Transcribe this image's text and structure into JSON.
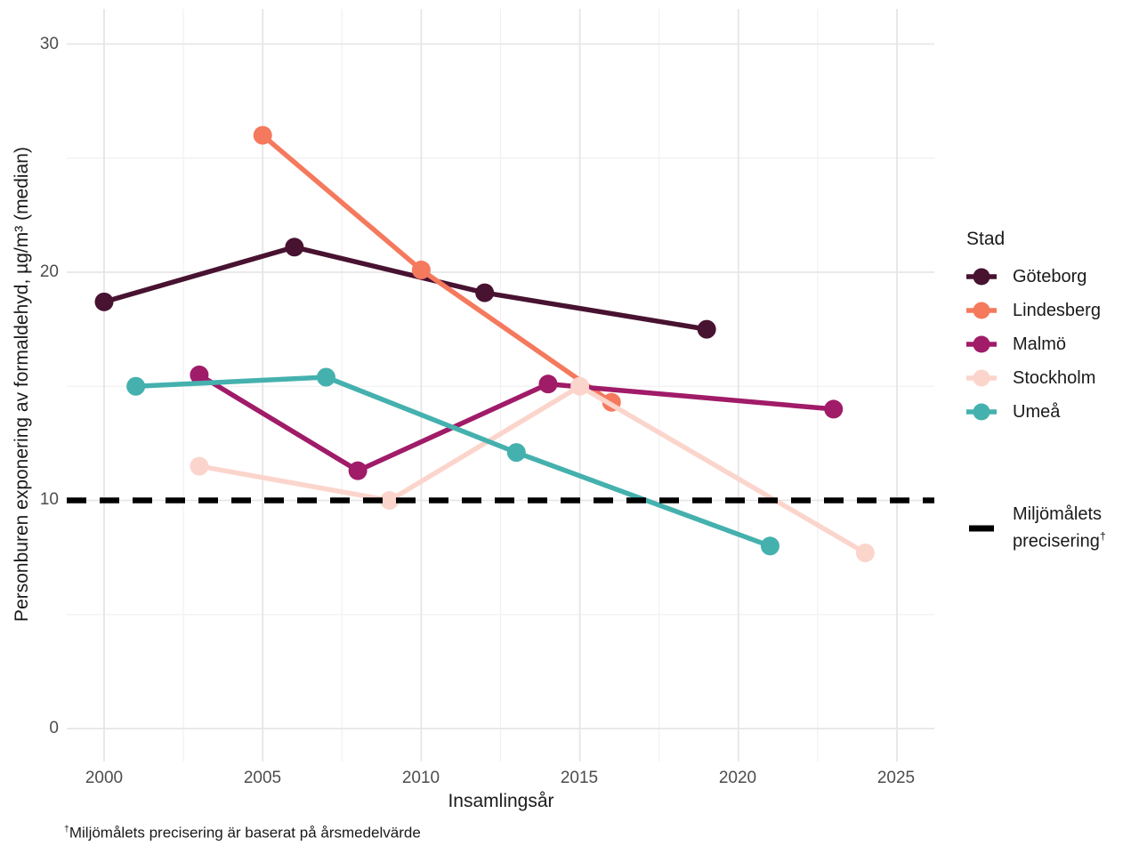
{
  "chart_data": {
    "type": "line",
    "title": "",
    "xlabel": "Insamlingsår",
    "ylabel": "Personburen exponering av formaldehyd, µg/m³ (median)",
    "x_ticks": [
      2000,
      2005,
      2010,
      2015,
      2020,
      2025
    ],
    "x_tick_labels": [
      "2000",
      "2005",
      "2010",
      "2015",
      "2020",
      "2025"
    ],
    "x_minor": [
      2002.5,
      2007.5,
      2012.5,
      2017.5,
      2022.5
    ],
    "y_ticks": [
      0,
      10,
      20,
      30
    ],
    "y_tick_labels": [
      "0",
      "10",
      "20",
      "30"
    ],
    "y_minor": [
      5,
      15,
      25
    ],
    "xlim": [
      1998.8,
      2026.2
    ],
    "ylim": [
      -1.4,
      31.5
    ],
    "grid": true,
    "legend_position": "right",
    "legend_title": "Stad",
    "series": [
      {
        "id": "goteborg",
        "name": "Göteborg",
        "color": "#481231",
        "x": [
          2000,
          2006,
          2012,
          2019
        ],
        "y": [
          18.7,
          21.1,
          19.1,
          17.5
        ]
      },
      {
        "id": "lindesberg",
        "name": "Lindesberg",
        "color": "#F5795D",
        "x": [
          2005,
          2010,
          2016
        ],
        "y": [
          26.0,
          20.1,
          14.3
        ]
      },
      {
        "id": "malmo",
        "name": "Malmö",
        "color": "#A01B68",
        "x": [
          2003,
          2008,
          2014,
          2023
        ],
        "y": [
          15.5,
          11.3,
          15.1,
          14.0
        ]
      },
      {
        "id": "stockholm",
        "name": "Stockholm",
        "color": "#FBD5CC",
        "x": [
          2003,
          2009,
          2015,
          2024
        ],
        "y": [
          11.5,
          10.0,
          15.0,
          7.7
        ]
      },
      {
        "id": "umea",
        "name": "Umeå",
        "color": "#45B1AE",
        "x": [
          2001,
          2007,
          2013,
          2021
        ],
        "y": [
          15.0,
          15.4,
          12.1,
          8.0
        ]
      }
    ],
    "reference_line": {
      "y": 10,
      "style": "dashed",
      "color": "#000000",
      "label_line1": "Miljömålets",
      "label_line2": "precisering",
      "dagger": "†"
    },
    "colors": {
      "grid_major": "#E6E6E6",
      "grid_minor": "#F1F1F1",
      "tick_text": "#4d4d4d",
      "title_text": "#1a1a1a"
    }
  },
  "footnote": {
    "dagger": "†",
    "text": "Miljömålets precisering är baserat på årsmedelvärde"
  }
}
